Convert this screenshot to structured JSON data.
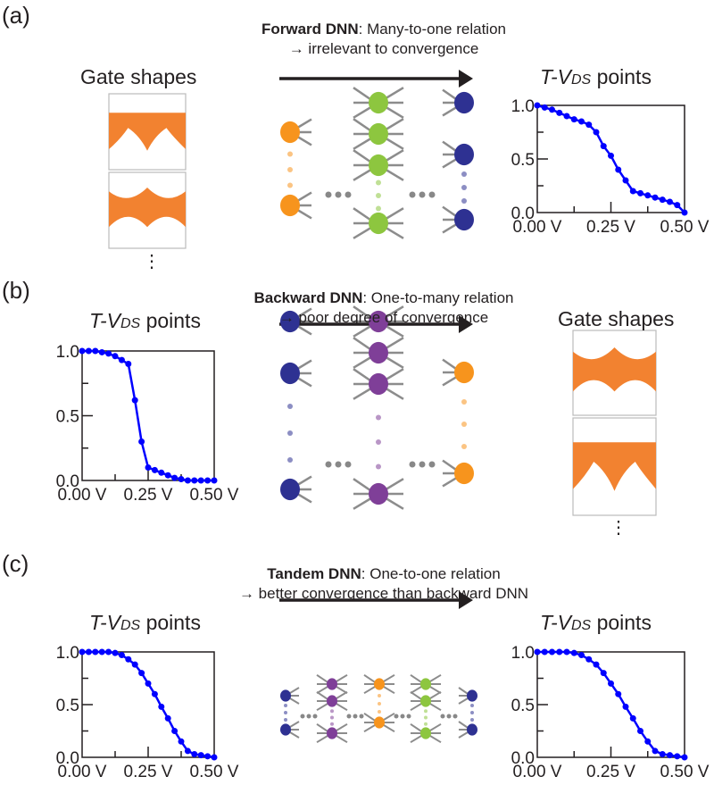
{
  "colors": {
    "orange_fill": "#f28230",
    "orange_node": "#f7941d",
    "green": "#8dc63f",
    "navy": "#2e3192",
    "purple": "#7f3f98",
    "curve": "#0000ff",
    "spoke": "#8c8c8c"
  },
  "panels": [
    {
      "label": "(a)",
      "caption_bold": "Forward DNN",
      "caption_rest": ": Many-to-one relation",
      "caption_line2": "→ irrelevant to convergence",
      "left_title": "Gate shapes",
      "right_title_pre": "T-V",
      "right_title_sub": "DS",
      "right_title_post": " points"
    },
    {
      "label": "(b)",
      "caption_bold": "Backward DNN",
      "caption_rest": ": One-to-many relation",
      "caption_line2": "→ poor degree of convergence",
      "left_title_pre": "T-V",
      "left_title_sub": "DS",
      "left_title_post": " points",
      "right_title": "Gate shapes"
    },
    {
      "label": "(c)",
      "caption_bold": "Tandem DNN",
      "caption_rest": ": One-to-one relation",
      "caption_line2": "→ better convergence than backward DNN",
      "left_title_pre": "T-V",
      "left_title_sub": "DS",
      "left_title_post": " points",
      "right_title_pre": "T-V",
      "right_title_sub": "DS",
      "right_title_post": " points"
    }
  ],
  "ellipsis": "⋮",
  "chart_data": [
    {
      "type": "line",
      "panel": "a",
      "xlabel": "",
      "ylabel": "",
      "xlim": [
        0,
        0.5
      ],
      "ylim": [
        0,
        1
      ],
      "xticks": [
        "0.00 V",
        "0.25 V",
        "0.50 V"
      ],
      "yticks": [
        "0.0",
        "0.5",
        "1.0"
      ],
      "x": [
        0,
        0.025,
        0.05,
        0.075,
        0.1,
        0.125,
        0.15,
        0.175,
        0.2,
        0.225,
        0.25,
        0.275,
        0.3,
        0.325,
        0.35,
        0.375,
        0.4,
        0.425,
        0.45,
        0.475,
        0.5
      ],
      "y": [
        1.0,
        0.98,
        0.96,
        0.93,
        0.9,
        0.87,
        0.85,
        0.82,
        0.75,
        0.62,
        0.53,
        0.4,
        0.3,
        0.2,
        0.18,
        0.16,
        0.14,
        0.12,
        0.1,
        0.07,
        0.0
      ]
    },
    {
      "type": "line",
      "panel": "b",
      "xlim": [
        0,
        0.5
      ],
      "ylim": [
        0,
        1
      ],
      "xticks": [
        "0.00 V",
        "0.25 V",
        "0.50 V"
      ],
      "yticks": [
        "0.0",
        "0.5",
        "1.0"
      ],
      "x": [
        0,
        0.025,
        0.05,
        0.075,
        0.1,
        0.125,
        0.15,
        0.175,
        0.2,
        0.225,
        0.25,
        0.275,
        0.3,
        0.325,
        0.35,
        0.375,
        0.4,
        0.425,
        0.45,
        0.475,
        0.5
      ],
      "y": [
        1.0,
        1.0,
        1.0,
        0.99,
        0.98,
        0.96,
        0.93,
        0.9,
        0.62,
        0.3,
        0.1,
        0.08,
        0.06,
        0.04,
        0.02,
        0.01,
        0,
        0,
        0,
        0,
        0
      ]
    },
    {
      "type": "line",
      "panel": "c-left",
      "xlim": [
        0,
        0.5
      ],
      "ylim": [
        0,
        1
      ],
      "xticks": [
        "0.00 V",
        "0.25 V",
        "0.50 V"
      ],
      "yticks": [
        "0.0",
        "0.5",
        "1.0"
      ],
      "x": [
        0,
        0.025,
        0.05,
        0.075,
        0.1,
        0.125,
        0.15,
        0.175,
        0.2,
        0.225,
        0.25,
        0.275,
        0.3,
        0.325,
        0.35,
        0.375,
        0.4,
        0.425,
        0.45,
        0.475,
        0.5
      ],
      "y": [
        1,
        1,
        1,
        1,
        1,
        0.99,
        0.97,
        0.93,
        0.88,
        0.8,
        0.7,
        0.6,
        0.48,
        0.37,
        0.25,
        0.15,
        0.06,
        0.03,
        0.02,
        0.01,
        0
      ]
    },
    {
      "type": "line",
      "panel": "c-right",
      "xlim": [
        0,
        0.5
      ],
      "ylim": [
        0,
        1
      ],
      "xticks": [
        "0.00 V",
        "0.25 V",
        "0.50 V"
      ],
      "yticks": [
        "0.0",
        "0.5",
        "1.0"
      ],
      "x": [
        0,
        0.025,
        0.05,
        0.075,
        0.1,
        0.125,
        0.15,
        0.175,
        0.2,
        0.225,
        0.25,
        0.275,
        0.3,
        0.325,
        0.35,
        0.375,
        0.4,
        0.425,
        0.45,
        0.475,
        0.5
      ],
      "y": [
        1,
        1,
        1,
        1,
        1,
        0.99,
        0.97,
        0.93,
        0.88,
        0.8,
        0.7,
        0.6,
        0.48,
        0.37,
        0.25,
        0.15,
        0.06,
        0.03,
        0.02,
        0.01,
        0
      ]
    }
  ]
}
